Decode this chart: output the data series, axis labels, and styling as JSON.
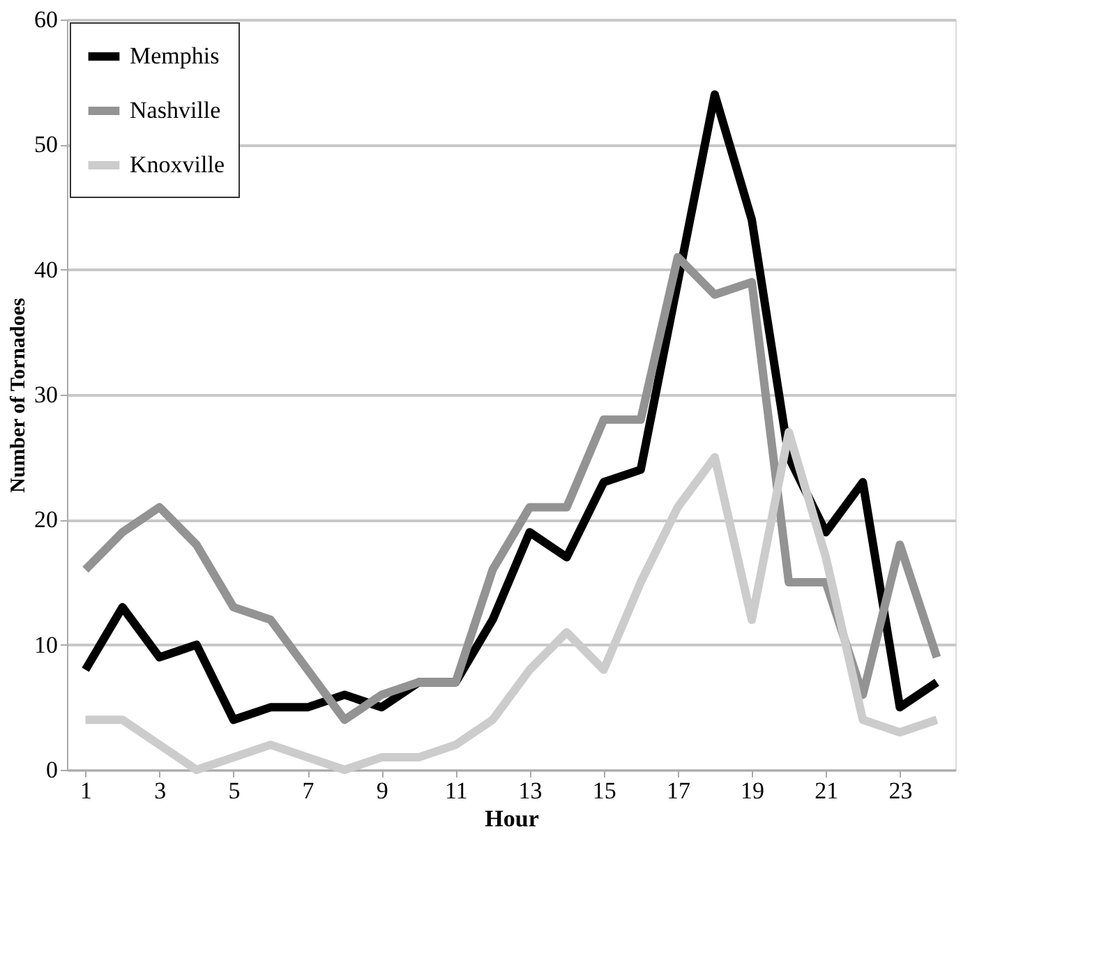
{
  "chart_data": {
    "type": "line",
    "xlabel": "Hour",
    "ylabel": "Number of Tornadoes",
    "x": [
      1,
      2,
      3,
      4,
      5,
      6,
      7,
      8,
      9,
      10,
      11,
      12,
      13,
      14,
      15,
      16,
      17,
      18,
      19,
      20,
      21,
      22,
      23,
      24
    ],
    "series": [
      {
        "name": "Memphis",
        "color": "#000000",
        "values": [
          8,
          13,
          9,
          10,
          4,
          5,
          5,
          6,
          5,
          7,
          7,
          12,
          19,
          17,
          23,
          24,
          39,
          54,
          44,
          25,
          19,
          23,
          5,
          7
        ]
      },
      {
        "name": "Nashville",
        "color": "#939393",
        "values": [
          16,
          19,
          21,
          18,
          13,
          12,
          8,
          4,
          6,
          7,
          7,
          16,
          21,
          21,
          28,
          28,
          41,
          38,
          39,
          15,
          15,
          6,
          18,
          9
        ]
      },
      {
        "name": "Knoxville",
        "color": "#cccccc",
        "values": [
          4,
          4,
          2,
          0,
          1,
          2,
          1,
          0,
          1,
          1,
          2,
          4,
          8,
          11,
          8,
          15,
          21,
          25,
          12,
          27,
          17,
          4,
          3,
          4
        ]
      }
    ],
    "xlim": [
      0.5,
      24.5
    ],
    "xticks": [
      1,
      3,
      5,
      7,
      9,
      11,
      13,
      15,
      17,
      19,
      21,
      23
    ],
    "ylim": [
      0,
      60
    ],
    "yticks": [
      0,
      10,
      20,
      30,
      40,
      50,
      60
    ],
    "grid": "y",
    "legend": "top left",
    "marker": "none",
    "line_style": "solid"
  }
}
